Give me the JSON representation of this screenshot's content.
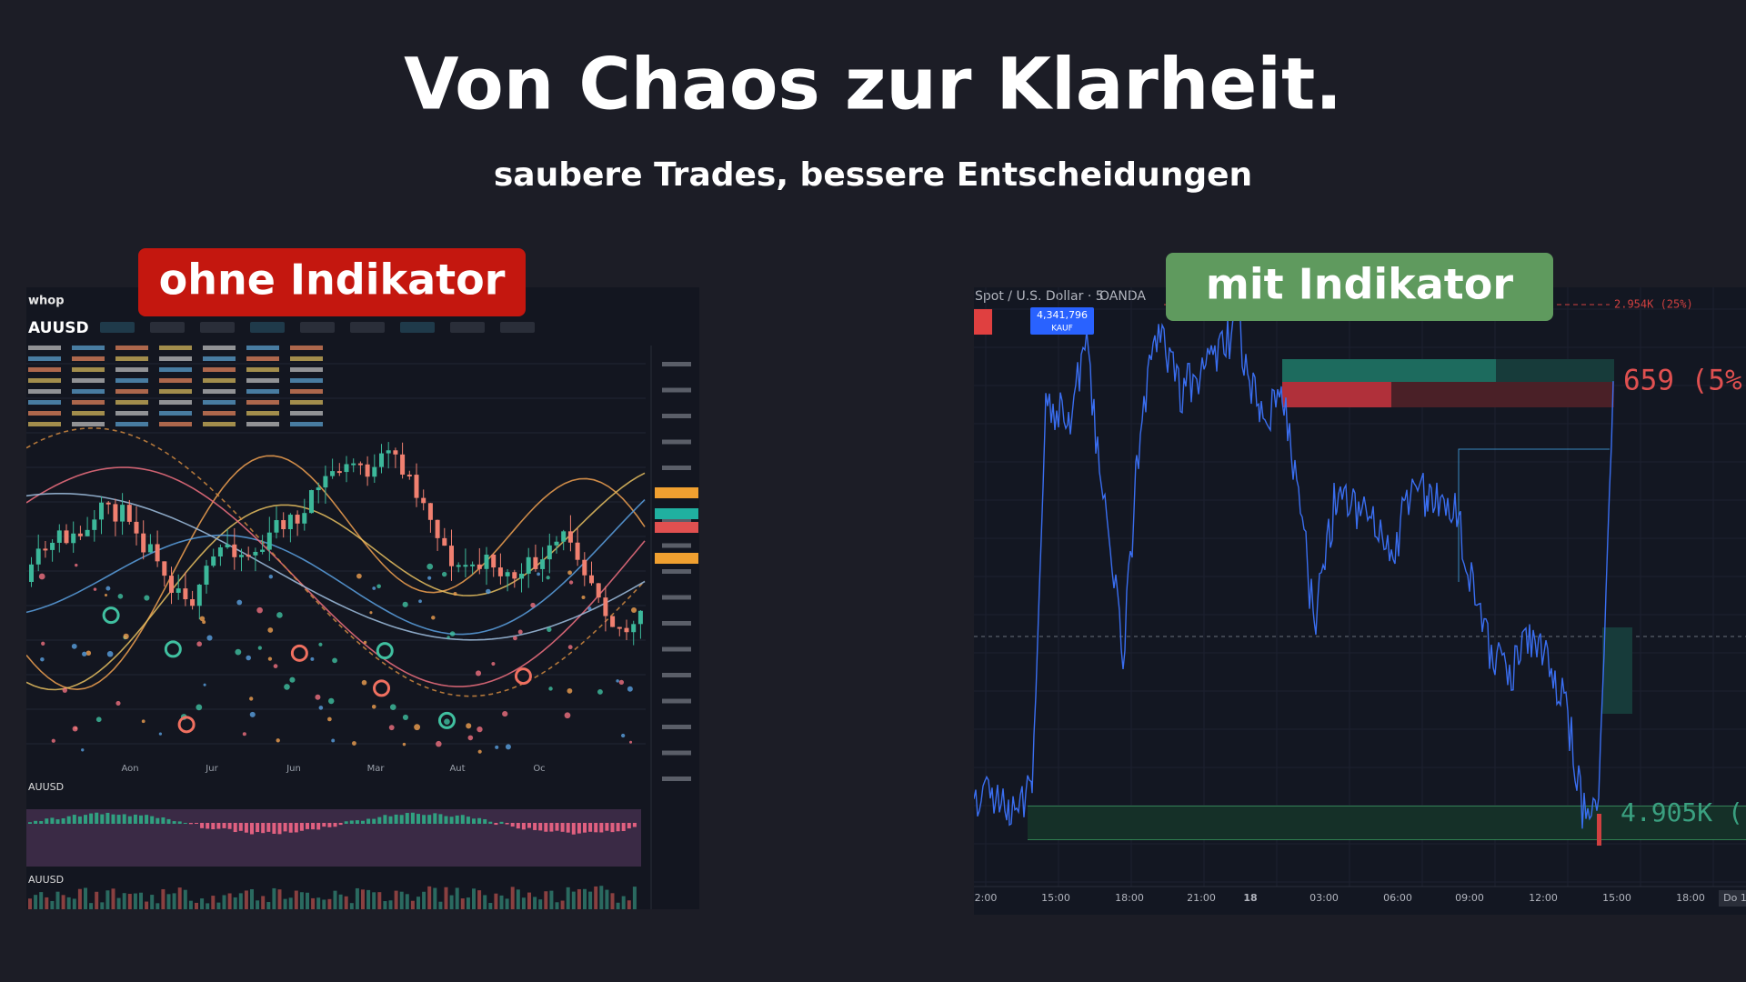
{
  "header": {
    "title": "Von Chaos zur Klarheit.",
    "subtitle": "saubere Trades, bessere Entscheidungen"
  },
  "left_panel": {
    "label": "ohne Indikator",
    "brand": "whop",
    "symbol": "AUUSD",
    "sub_symbol": "AUUSD",
    "volume_symbol": "AUUSD",
    "x_labels": [
      "Aon",
      "Jur",
      "Jun",
      "Mar",
      "Aut",
      "Oc"
    ]
  },
  "right_panel": {
    "label": "mit Indikator",
    "symbol": "Spot / U.S. Dollar · 5",
    "broker": "OANDA",
    "order_value": "4,341,796",
    "order_side": "KAUF",
    "level_top": "2.954K (25%)",
    "level_red": "659 (5%",
    "level_green": "4.905K (",
    "x_labels": [
      "2:00",
      "15:00",
      "18:00",
      "21:00",
      "18",
      "03:00",
      "06:00",
      "09:00",
      "12:00",
      "15:00",
      "18:00",
      "Do 1"
    ]
  }
}
